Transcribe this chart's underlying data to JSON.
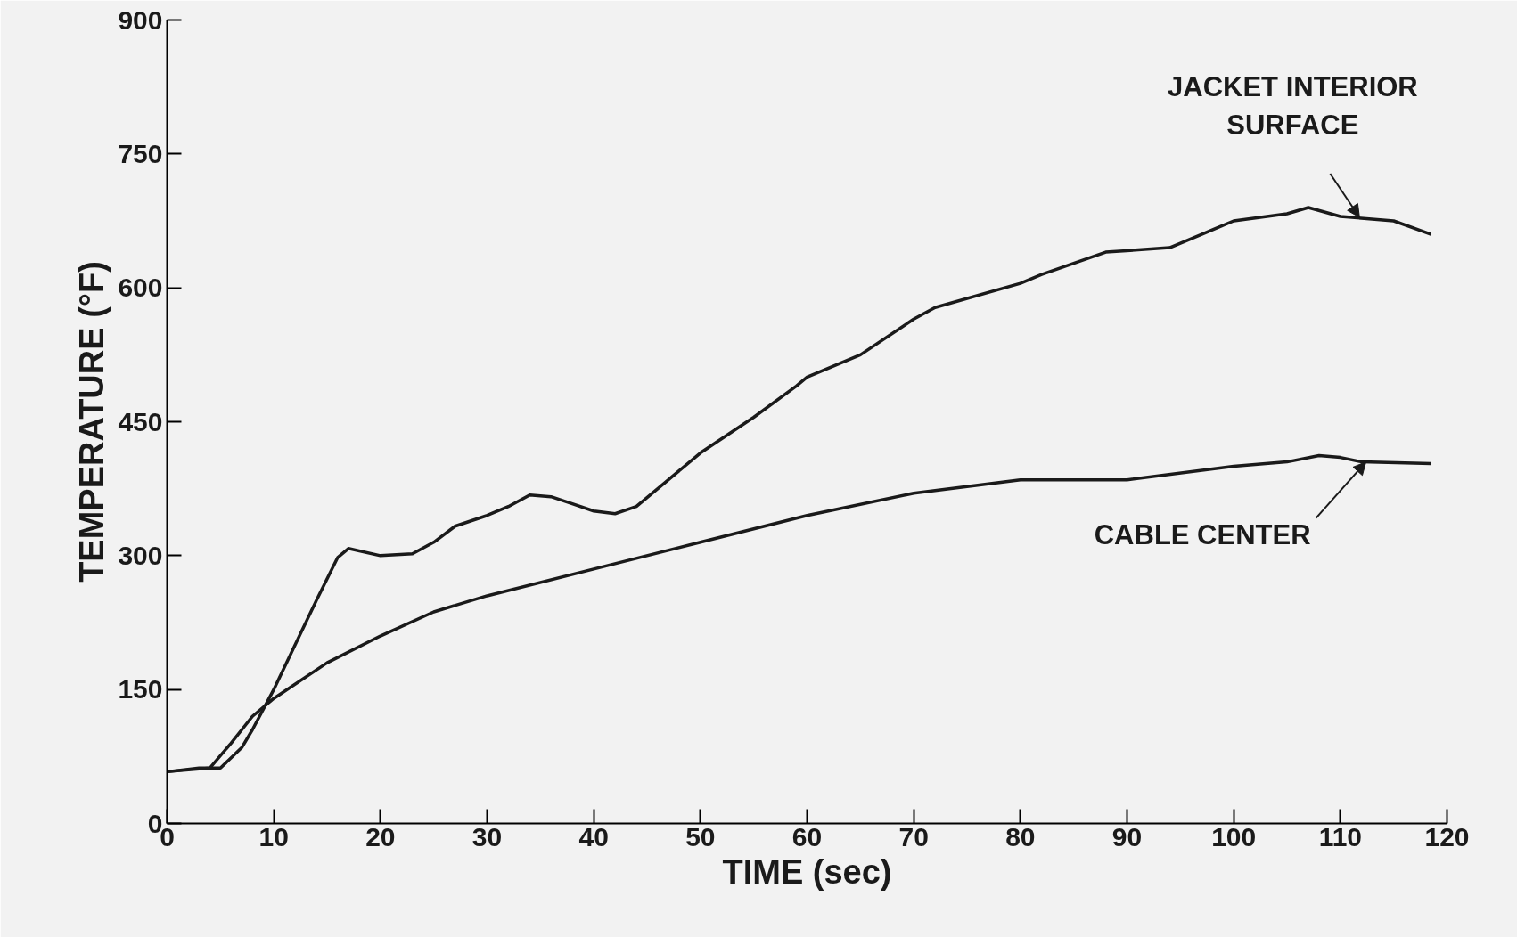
{
  "chart_data": {
    "type": "line",
    "xlabel": "TIME (sec)",
    "ylabel": "TEMPERATURE (°F)",
    "xlim": [
      0,
      120
    ],
    "ylim": [
      0,
      900
    ],
    "xticks": [
      0,
      10,
      20,
      30,
      40,
      50,
      60,
      70,
      80,
      90,
      100,
      110,
      120
    ],
    "yticks": [
      0,
      150,
      300,
      450,
      600,
      750,
      900
    ],
    "grid": false,
    "marker": "none",
    "line_style": "solid",
    "series": [
      {
        "color": "#1a1a1a",
        "x": [
          0,
          3,
          5,
          7,
          8,
          10,
          12,
          14,
          16,
          17,
          20,
          23,
          25,
          27,
          30,
          32,
          34,
          36,
          38,
          40,
          42,
          44,
          47,
          50,
          55,
          59,
          60,
          65,
          70,
          72,
          80,
          82,
          88,
          94,
          97,
          100,
          105,
          107,
          110,
          115,
          118.5
        ],
        "values": [
          58,
          62,
          62,
          85,
          105,
          150,
          200,
          250,
          298,
          308,
          300,
          302,
          315,
          333,
          345,
          355,
          368,
          366,
          358,
          350,
          347,
          355,
          385,
          415,
          455,
          490,
          500,
          525,
          565,
          578,
          605,
          615,
          640,
          645,
          660,
          675,
          683,
          690,
          680,
          675,
          660
        ]
      },
      {
        "color": "#1a1a1a",
        "x": [
          0,
          4,
          6,
          8,
          10,
          15,
          20,
          25,
          30,
          40,
          50,
          60,
          70,
          80,
          90,
          100,
          105,
          108,
          110,
          112,
          118.5
        ],
        "values": [
          58,
          62,
          90,
          120,
          140,
          180,
          210,
          237,
          255,
          285,
          315,
          345,
          370,
          385,
          385,
          400,
          405,
          412,
          410,
          405,
          403
        ]
      }
    ],
    "annotations": [
      {
        "text": "JACKET INTERIOR\nSURFACE",
        "x": 111.8,
        "y": 679
      },
      {
        "text": "CABLE CENTER",
        "x": 112.4,
        "y": 405
      }
    ]
  }
}
